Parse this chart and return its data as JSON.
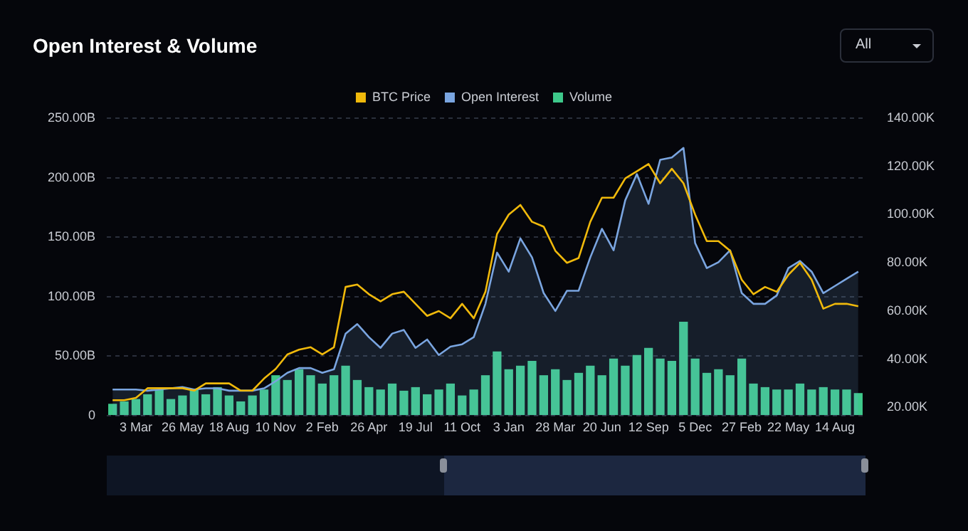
{
  "chart_data": {
    "type": "line",
    "title": "Open Interest & Volume",
    "annotations": [
      "All"
    ],
    "categories": [
      null,
      null,
      "3 Mar",
      null,
      null,
      null,
      "26 May",
      null,
      null,
      null,
      "18 Aug",
      null,
      null,
      null,
      "10 Nov",
      null,
      null,
      null,
      "2 Feb",
      null,
      null,
      null,
      "26 Apr",
      null,
      null,
      null,
      "19 Jul",
      null,
      null,
      null,
      "11 Oct",
      null,
      null,
      null,
      "3 Jan",
      null,
      null,
      null,
      "28 Mar",
      null,
      null,
      null,
      "20 Jun",
      null,
      null,
      null,
      "12 Sep",
      null,
      null,
      null,
      "5 Dec",
      null,
      null,
      null,
      "27 Feb",
      null,
      null,
      null,
      "22 May",
      null,
      null,
      null,
      "14 Aug",
      null,
      null
    ],
    "ylim": [
      0,
      250
    ],
    "yticks": [
      0,
      {
        "value": 50,
        "label": "50.00B"
      },
      {
        "value": 100,
        "label": "100.00B"
      },
      {
        "value": 150,
        "label": "150.00B"
      },
      {
        "value": 200,
        "label": "200.00B"
      },
      {
        "value": 250,
        "label": "250.00B"
      }
    ],
    "y2lim": [
      16.6,
      140
    ],
    "y2ticks": [
      {
        "value": 20,
        "label": "20.00K"
      },
      {
        "value": 40,
        "label": "40.00K"
      },
      {
        "value": 60,
        "label": "60.00K"
      },
      {
        "value": 80,
        "label": "80.00K"
      },
      {
        "value": 100,
        "label": "100.00K"
      },
      {
        "value": 120,
        "label": "120.00K"
      },
      {
        "value": 140,
        "label": "140.00K"
      }
    ],
    "grid": "y",
    "legend": "top",
    "series": [
      {
        "name": "BTC Price",
        "axis": "y2",
        "color": "#f0b90b",
        "values": [
          23,
          23,
          24,
          28,
          28,
          28,
          28,
          27,
          30,
          30,
          30,
          27,
          27,
          32,
          36,
          42,
          44,
          45,
          42,
          45,
          70,
          71,
          67,
          64,
          67,
          68,
          63,
          58,
          60,
          57,
          63,
          57,
          68,
          92,
          100,
          104,
          97,
          95,
          85,
          80,
          82,
          97,
          107,
          107,
          115,
          118,
          121,
          113,
          119,
          113,
          100,
          89,
          89,
          85,
          73,
          67,
          70,
          68,
          75,
          80,
          73,
          61,
          63,
          63,
          62
        ]
      },
      {
        "name": "Open Interest",
        "type": "area",
        "color": "#7aa5e0",
        "values": [
          22,
          22,
          22,
          21,
          22,
          23,
          24,
          22,
          23,
          23,
          21,
          21,
          21,
          23,
          29,
          36,
          40,
          40,
          36,
          39,
          69,
          77,
          66,
          57,
          69,
          72,
          57,
          64,
          51,
          58,
          60,
          66,
          94,
          137,
          121,
          149,
          133,
          103,
          88,
          105,
          105,
          133,
          157,
          139,
          181,
          203,
          178,
          215,
          217,
          225,
          145,
          124,
          129,
          139,
          103,
          94,
          94,
          101,
          124,
          130,
          121,
          103,
          109,
          115,
          121
        ]
      },
      {
        "name": "Volume",
        "type": "bar",
        "color": "#3ec98b",
        "values": [
          10,
          12,
          14,
          18,
          22,
          14,
          17,
          22,
          18,
          24,
          17,
          12,
          17,
          22,
          34,
          30,
          39,
          34,
          27,
          34,
          42,
          30,
          24,
          22,
          27,
          21,
          24,
          18,
          22,
          27,
          17,
          22,
          34,
          54,
          39,
          42,
          46,
          34,
          39,
          30,
          36,
          42,
          34,
          48,
          42,
          51,
          57,
          48,
          46,
          79,
          48,
          36,
          39,
          34,
          48,
          27,
          24,
          22,
          22,
          27,
          22,
          24,
          22,
          22,
          19
        ]
      }
    ]
  }
}
